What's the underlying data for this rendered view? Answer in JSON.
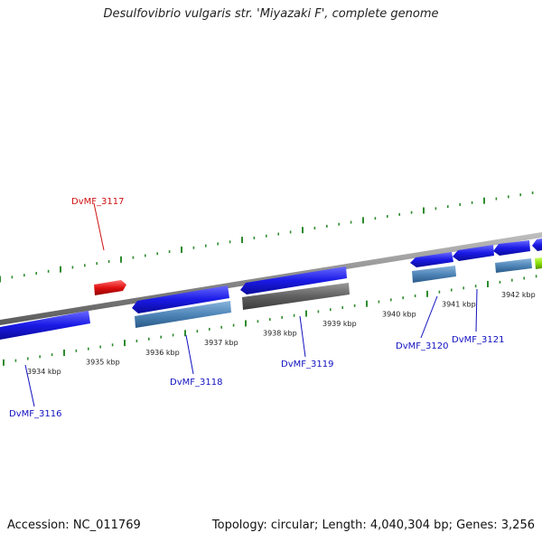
{
  "title": "Desulfovibrio vulgaris str. 'Miyazaki F', complete genome",
  "footer": {
    "accession": "Accession: NC_011769",
    "summary": "Topology: circular; Length: 4,040,304 bp; Genes: 3,256"
  },
  "colors": {
    "backbone": "#8a8a8a",
    "tick": "#2e8b2e",
    "gene_blue": "#1a1ae6",
    "gene_steel": "#4f86b8",
    "gene_gray": "#606060",
    "gene_red": "#e01010",
    "gene_green": "#88e000",
    "label_blue": "#1010c0",
    "label_red": "#d01010"
  },
  "scale_labels": [
    "3934 kbp",
    "3935 kbp",
    "3936 kbp",
    "3937 kbp",
    "3938 kbp",
    "3939 kbp",
    "3940 kbp",
    "3941 kbp",
    "3942 kbp"
  ],
  "gene_labels": [
    {
      "text": "DvMF_3117",
      "color": "red"
    },
    {
      "text": "DvMF_3116",
      "color": "blue"
    },
    {
      "text": "DvMF_3118",
      "color": "blue"
    },
    {
      "text": "DvMF_3119",
      "color": "blue"
    },
    {
      "text": "DvMF_3120",
      "color": "blue"
    },
    {
      "text": "DvMF_3121",
      "color": "blue"
    }
  ]
}
